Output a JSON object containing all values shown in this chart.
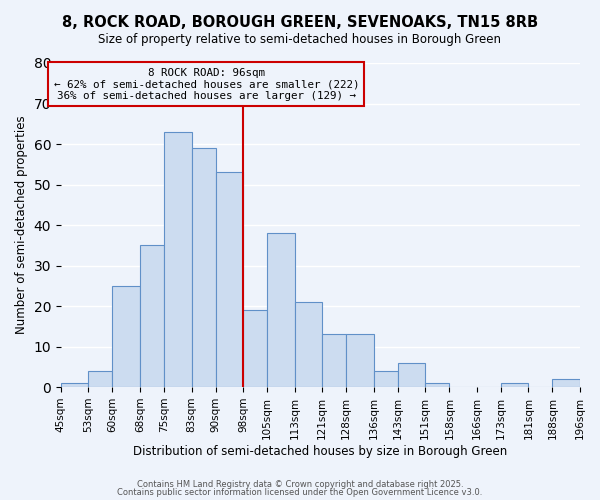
{
  "title": "8, ROCK ROAD, BOROUGH GREEN, SEVENOAKS, TN15 8RB",
  "subtitle": "Size of property relative to semi-detached houses in Borough Green",
  "xlabel": "Distribution of semi-detached houses by size in Borough Green",
  "ylabel": "Number of semi-detached properties",
  "footnote1": "Contains HM Land Registry data © Crown copyright and database right 2025.",
  "footnote2": "Contains public sector information licensed under the Open Government Licence v3.0.",
  "bin_labels": [
    "45sqm",
    "53sqm",
    "60sqm",
    "68sqm",
    "75sqm",
    "83sqm",
    "90sqm",
    "98sqm",
    "105sqm",
    "113sqm",
    "121sqm",
    "128sqm",
    "136sqm",
    "143sqm",
    "151sqm",
    "158sqm",
    "166sqm",
    "173sqm",
    "181sqm",
    "188sqm",
    "196sqm"
  ],
  "bin_edges": [
    45,
    53,
    60,
    68,
    75,
    83,
    90,
    98,
    105,
    113,
    121,
    128,
    136,
    143,
    151,
    158,
    166,
    173,
    181,
    188,
    196
  ],
  "bar_heights": [
    1,
    4,
    25,
    35,
    63,
    59,
    53,
    19,
    38,
    21,
    13,
    13,
    4,
    6,
    1,
    0,
    0,
    1,
    0,
    2
  ],
  "bar_color": "#ccdcf0",
  "bar_edge_color": "#6090c8",
  "bg_color": "#eef3fb",
  "grid_color": "#ffffff",
  "vline_x": 98,
  "vline_color": "#cc0000",
  "annotation_title": "8 ROCK ROAD: 96sqm",
  "annotation_line1": "← 62% of semi-detached houses are smaller (222)",
  "annotation_line2": "36% of semi-detached houses are larger (129) →",
  "annotation_box_edgecolor": "#cc0000",
  "ylim": [
    0,
    80
  ],
  "yticks": [
    0,
    10,
    20,
    30,
    40,
    50,
    60,
    70,
    80
  ]
}
